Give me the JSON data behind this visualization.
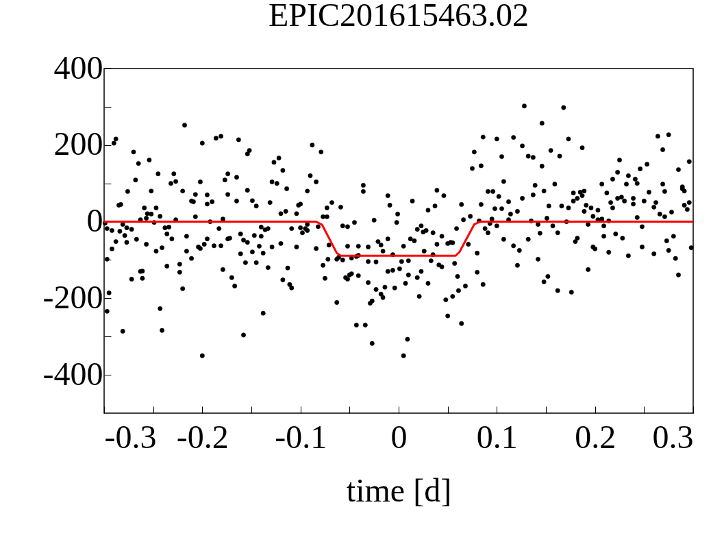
{
  "chart_data": {
    "type": "scatter",
    "title": "EPIC201615463.02",
    "xlabel": "time [d]",
    "xlim": [
      -0.3,
      0.3
    ],
    "ylim": [
      -500,
      400
    ],
    "xticks": [
      -0.3,
      {
        "value": -0.25,
        "label": null
      },
      -0.2,
      {
        "value": -0.15,
        "label": null
      },
      -0.1,
      {
        "value": -0.05,
        "label": null
      },
      0,
      {
        "value": 0.05,
        "label": null
      },
      0.1,
      {
        "value": 0.15,
        "label": null
      },
      0.2,
      {
        "value": 0.25,
        "label": null
      },
      0.3
    ],
    "yticks": [
      -400,
      {
        "value": -300,
        "label": null
      },
      -200,
      {
        "value": -100,
        "label": null
      },
      0,
      {
        "value": 100,
        "label": null
      },
      200,
      {
        "value": 300,
        "label": null
      },
      400
    ],
    "marker": "circle",
    "series": [
      {
        "color": "#000000",
        "x": [
          -0.29,
          -0.288,
          -0.27,
          -0.265,
          -0.268,
          -0.276,
          -0.285,
          -0.283,
          -0.299,
          -0.297,
          -0.292,
          -0.288,
          -0.292,
          -0.297,
          -0.295,
          -0.297,
          -0.281,
          -0.281,
          -0.284,
          -0.279,
          -0.277,
          -0.272,
          -0.277,
          -0.267,
          -0.272,
          -0.263,
          -0.261,
          -0.261,
          -0.257,
          -0.263,
          -0.259,
          -0.256,
          -0.252,
          -0.247,
          -0.257,
          -0.249,
          -0.243,
          -0.252,
          -0.254,
          -0.245,
          -0.247,
          -0.241,
          -0.243,
          -0.241,
          -0.238,
          -0.236,
          -0.234,
          -0.231,
          -0.236,
          -0.232,
          -0.229,
          -0.227,
          -0.227,
          -0.218,
          -0.22,
          -0.223,
          -0.223,
          -0.22,
          -0.216,
          -0.216,
          -0.211,
          -0.211,
          -0.209,
          -0.207,
          -0.207,
          -0.202,
          -0.2,
          -0.2,
          -0.204,
          -0.202,
          -0.198,
          -0.195,
          -0.195,
          -0.195,
          -0.19,
          -0.192,
          -0.188,
          -0.186,
          -0.181,
          -0.183,
          -0.179,
          -0.181,
          -0.179,
          -0.177,
          -0.174,
          -0.174,
          -0.174,
          -0.172,
          -0.17,
          -0.167,
          -0.165,
          -0.165,
          -0.163,
          -0.161,
          -0.158,
          -0.161,
          -0.156,
          -0.158,
          -0.154,
          -0.154,
          -0.152,
          -0.154,
          -0.149,
          -0.149
        ],
        "values": [
          205,
          216,
          182,
          152,
          109,
          79,
          43,
          45,
          -4,
          -18,
          -23,
          -52,
          -71,
          -98,
          -186,
          -234,
          -286,
          -7,
          -25,
          -36,
          -16,
          -20,
          -54,
          -46,
          -150,
          -130,
          -129,
          -148,
          -59,
          5,
          36,
          21,
          20,
          36,
          9,
          -2,
          14,
          80,
          161,
          125,
          -77,
          -68,
          -227,
          -284,
          -16,
          -32,
          -14,
          -45,
          -116,
          100,
          125,
          105,
          5,
          252,
          80,
          -111,
          -132,
          -175,
          -38,
          -77,
          -96,
          54,
          52,
          71,
          13,
          104,
          205,
          -350,
          -66,
          -70,
          -59,
          -45,
          70,
          46,
          52,
          0,
          -63,
          218,
          223,
          -18,
          7,
          -63,
          -125,
          109,
          125,
          71,
          -45,
          -43,
          -146,
          -168,
          116,
          54,
          214,
          -32,
          -48,
          -84,
          -107,
          -296,
          -54,
          177,
          186,
          82,
          55,
          -79
        ]
      },
      {
        "color": "#000000",
        "x": [
          -0.145,
          -0.147,
          -0.14,
          -0.14,
          -0.136,
          -0.133,
          -0.142,
          -0.138,
          -0.145,
          -0.133,
          -0.138,
          -0.131,
          -0.129,
          -0.127,
          -0.122,
          -0.118,
          -0.129,
          -0.124,
          -0.12,
          -0.115,
          -0.12,
          -0.114,
          -0.118,
          -0.111,
          -0.109,
          -0.113,
          -0.109,
          -0.104,
          -0.104,
          -0.102,
          -0.1,
          -0.1,
          -0.098,
          -0.095,
          -0.093,
          -0.093,
          -0.093,
          -0.09,
          -0.088,
          -0.084,
          -0.079,
          -0.082,
          -0.084,
          -0.077,
          -0.073,
          -0.073,
          -0.068,
          -0.077,
          -0.075,
          -0.071,
          -0.072,
          -0.063,
          -0.061,
          -0.063,
          -0.059,
          -0.057,
          -0.057,
          -0.052,
          -0.052,
          -0.054,
          -0.052,
          -0.05,
          -0.048,
          -0.045,
          -0.048,
          -0.043,
          -0.041,
          -0.041,
          -0.041,
          -0.043,
          -0.034,
          -0.036,
          -0.036,
          -0.031,
          -0.031,
          -0.031,
          -0.029,
          -0.027,
          -0.027,
          -0.025,
          -0.023,
          -0.023,
          -0.021,
          -0.018,
          -0.016,
          -0.018,
          -0.016,
          -0.014,
          -0.011,
          -0.009,
          -0.011,
          -0.011,
          -0.006,
          -0.004,
          -0.001,
          -0.002,
          -0.006,
          0.001
        ],
        "values": [
          41,
          -36,
          -38,
          -14,
          -21,
          -18,
          -64,
          -82,
          -107,
          -120,
          -239,
          50,
          -66,
          155,
          166,
          134,
          104,
          100,
          21,
          27,
          -57,
          86,
          -152,
          -164,
          -173,
          -121,
          -18,
          21,
          -66,
          43,
          46,
          -16,
          -29,
          -18,
          -23,
          -7,
          80,
          120,
          200,
          104,
          182,
          -13,
          -70,
          13,
          13,
          36,
          50,
          -114,
          -148,
          -61,
          -98,
          -98,
          -93,
          -211,
          38,
          -11,
          -100,
          -13,
          -64,
          -146,
          -150,
          -139,
          -136,
          -2,
          -95,
          -91,
          -64,
          -88,
          -141,
          -270,
          -270,
          95,
          79,
          -66,
          -104,
          -159,
          -213,
          -207,
          -318,
          4,
          -105,
          -177,
          -52,
          -61,
          -77,
          -189,
          -198,
          -171,
          68,
          43,
          -45,
          -130,
          -127,
          -173,
          20,
          -2,
          -86,
          -123
        ]
      },
      {
        "color": "#000000",
        "x": [
          0.005,
          0.003,
          0.014,
          0.012,
          0.016,
          0.01,
          0.01,
          0.007,
          0.009,
          0.005,
          0.019,
          0.023,
          0.025,
          0.028,
          0.026,
          0.019,
          0.023,
          0.021,
          0.03,
          0.03,
          0.037,
          0.039,
          0.046,
          0.035,
          0.039,
          0.035,
          0.033,
          0.041,
          0.044,
          0.044,
          0.05,
          0.053,
          0.055,
          0.048,
          0.05,
          0.055,
          0.057,
          0.06,
          0.061,
          0.059,
          0.064,
          0.064,
          0.066,
          0.068,
          0.071,
          0.073,
          0.075,
          0.077,
          0.08,
          0.08,
          0.082,
          0.084,
          0.084,
          0.086,
          0.086,
          0.088,
          0.091,
          0.091,
          0.093,
          0.096,
          0.095,
          0.098,
          0.1,
          0.1,
          0.102,
          0.105,
          0.105,
          0.107,
          0.107,
          0.112,
          0.112,
          0.114,
          0.117,
          0.117,
          0.121,
          0.121,
          0.123,
          0.126,
          0.126,
          0.128,
          0.132,
          0.132,
          0.135,
          0.137,
          0.137,
          0.139,
          0.142,
          0.144,
          0.142,
          0.146,
          0.146,
          0.148,
          0.148,
          0.151,
          0.152
        ],
        "values": [
          -64,
          -104,
          54,
          -45,
          -50,
          -102,
          -139,
          -161,
          -307,
          -350,
          -20,
          -11,
          -27,
          -23,
          -77,
          -146,
          -130,
          -195,
          -161,
          30,
          41,
          82,
          68,
          -29,
          -59,
          -86,
          -102,
          -113,
          -118,
          -38,
          -57,
          -54,
          -55,
          -204,
          -246,
          -195,
          -109,
          -143,
          -180,
          -18,
          45,
          -266,
          5,
          -168,
          -59,
          14,
          139,
          182,
          -82,
          -132,
          2,
          146,
          45,
          221,
          -164,
          -18,
          79,
          -29,
          -5,
          79,
          7,
          34,
          -11,
          216,
          66,
          34,
          170,
          -46,
          105,
          52,
          5,
          20,
          220,
          -63,
          27,
          -114,
          -75,
          61,
          198,
          302,
          171,
          -46,
          2,
          168,
          70,
          95,
          -7,
          -30,
          -98,
          257,
          145,
          80,
          -157,
          9,
          -143
        ]
      },
      {
        "color": "#000000",
        "x": [
          0.153,
          0.155,
          0.157,
          0.159,
          0.162,
          0.162,
          0.164,
          0.168,
          0.166,
          0.171,
          0.173,
          0.173,
          0.176,
          0.178,
          0.178,
          0.18,
          0.182,
          0.182,
          0.185,
          0.187,
          0.187,
          0.189,
          0.189,
          0.191,
          0.193,
          0.196,
          0.198,
          0.198,
          0.2,
          0.193,
          0.203,
          0.203,
          0.207,
          0.207,
          0.209,
          0.209,
          0.212,
          0.214,
          0.214,
          0.216,
          0.218,
          0.218,
          0.221,
          0.223,
          0.223,
          0.225,
          0.227,
          0.23,
          0.228,
          0.232,
          0.234,
          0.234,
          0.239,
          0.239,
          0.241,
          0.243,
          0.243,
          0.246,
          0.248,
          0.248,
          0.25,
          0.253,
          0.255,
          0.26,
          0.26,
          0.262,
          0.264,
          0.266,
          0.269,
          0.269,
          0.271,
          0.271,
          0.273,
          0.275,
          0.275,
          0.278,
          0.28,
          0.282,
          0.285,
          0.285,
          0.289,
          0.289,
          0.291,
          0.291,
          0.294,
          0.296,
          0.296,
          0.298
        ],
        "values": [
          41,
          186,
          -11,
          98,
          -29,
          -180,
          171,
          298,
          41,
          0,
          216,
          36,
          -184,
          75,
          54,
          -52,
          -43,
          61,
          77,
          68,
          193,
          80,
          27,
          43,
          -7,
          36,
          14,
          -66,
          -71,
          -125,
          30,
          5,
          98,
          7,
          -11,
          -38,
          75,
          2,
          -80,
          50,
          36,
          111,
          -32,
          129,
          61,
          161,
          64,
          54,
          -43,
          98,
          120,
          -89,
          61,
          46,
          111,
          100,
          11,
          138,
          -13,
          -66,
          54,
          150,
          77,
          38,
          -84,
          50,
          223,
          20,
          188,
          98,
          79,
          13,
          -50,
          227,
          -75,
          25,
          -38,
          -96,
          136,
          -139,
          91,
          86,
          80,
          43,
          32,
          50,
          157,
          -68
        ]
      },
      {
        "type": "line",
        "marker": "none",
        "color": "#ff0000",
        "x": [
          -0.3,
          -0.084,
          -0.078,
          -0.063,
          -0.059,
          0.058,
          0.062,
          0.077,
          0.083,
          0.3
        ],
        "values": [
          0,
          0,
          -8,
          -82,
          -89,
          -89,
          -79,
          -7,
          0,
          0
        ]
      }
    ]
  }
}
